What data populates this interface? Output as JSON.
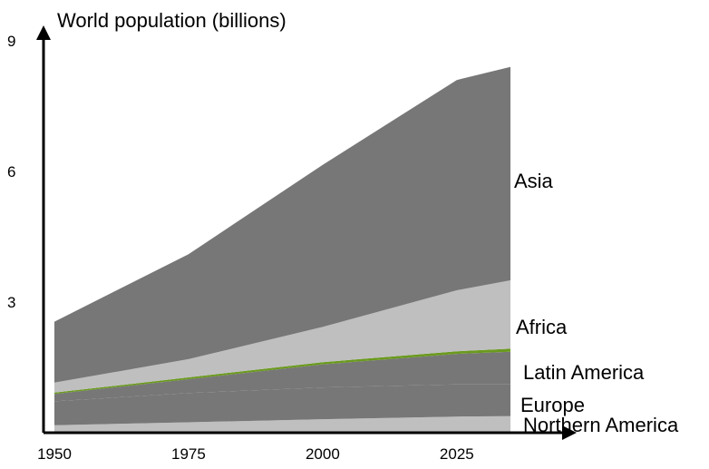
{
  "chart_data": {
    "type": "area",
    "stacked": true,
    "title": "World population (billions)",
    "xlabel": "",
    "ylabel": "",
    "x_ticks": [
      1950,
      1975,
      2000,
      2025
    ],
    "y_ticks": [
      3,
      6,
      9
    ],
    "xlim": [
      1945,
      2050
    ],
    "ylim": [
      0,
      9
    ],
    "grid": false,
    "x": [
      1950,
      1975,
      2000,
      2025,
      2035
    ],
    "series": [
      {
        "name": "Northern America",
        "values": [
          0.17,
          0.24,
          0.31,
          0.37,
          0.38
        ],
        "color": "#BFBFBF"
      },
      {
        "name": "Europe",
        "values": [
          0.55,
          0.67,
          0.73,
          0.74,
          0.73
        ],
        "color": "#777777"
      },
      {
        "name": "Latin America",
        "values": [
          0.17,
          0.32,
          0.53,
          0.7,
          0.75
        ],
        "color": "#777777"
      },
      {
        "name": "",
        "values": [
          0.03,
          0.04,
          0.05,
          0.06,
          0.07
        ],
        "color": "#6B9A1F"
      },
      {
        "name": "Africa",
        "values": [
          0.23,
          0.42,
          0.81,
          1.4,
          1.57
        ],
        "color": "#BFBFBF"
      },
      {
        "name": "Asia",
        "values": [
          1.4,
          2.41,
          3.72,
          4.83,
          4.9
        ],
        "color": "#777777"
      }
    ],
    "label_colors": {
      "axis": "#000000",
      "text": "#000000"
    }
  }
}
